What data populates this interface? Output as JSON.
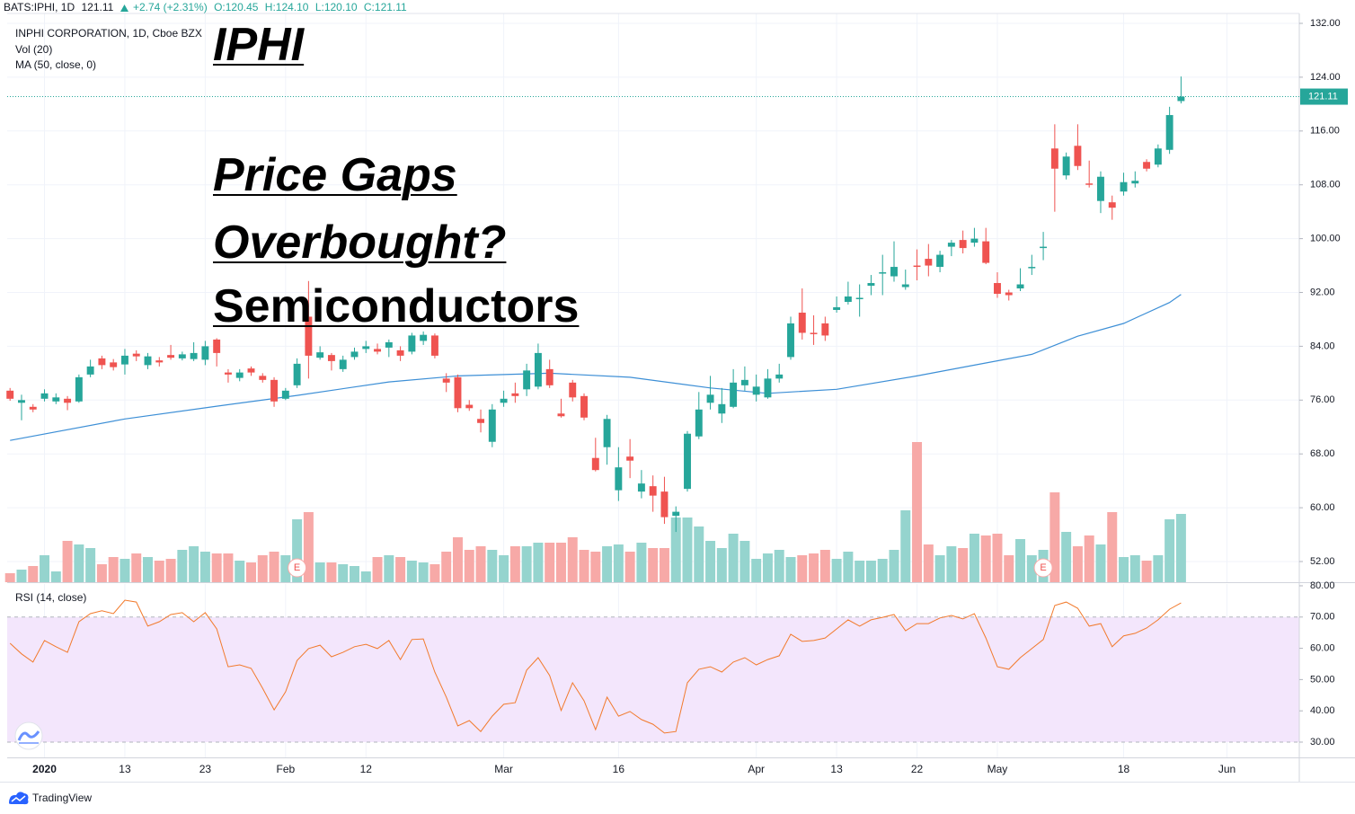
{
  "header": {
    "symbol": "BATS:IPHI, 1D",
    "last": "121.11",
    "change": "+2.74 (+2.31%)",
    "ohlc": [
      "O:120.45",
      "H:124.10",
      "L:120.10",
      "C:121.11"
    ]
  },
  "overlay": [
    "IPHI",
    "Price Gaps",
    "Overbought?",
    "Semiconductors"
  ],
  "footer": {
    "brand": "TradingView"
  },
  "chart_data": [
    {
      "type": "candlestick",
      "title": "INPHI CORPORATION, 1D, Cboe BZX",
      "volume_name": "Vol (20)",
      "up_color": "#26a69a",
      "down_color": "#ef5350",
      "volume_up_color": "#95d4ce",
      "volume_down_color": "#f7a9a7",
      "grid": true,
      "xlim": [
        -0.25,
        112.3
      ],
      "xticks": [
        {
          "value": 3,
          "label": "2020"
        },
        {
          "value": 10,
          "label": "13"
        },
        {
          "value": 17,
          "label": "23"
        },
        {
          "value": 24,
          "label": "Feb"
        },
        {
          "value": 31,
          "label": "12"
        },
        {
          "value": 43,
          "label": "Mar"
        },
        {
          "value": 53,
          "label": "16"
        },
        {
          "value": 65,
          "label": "Apr"
        },
        {
          "value": 72,
          "label": "13"
        },
        {
          "value": 79,
          "label": "22"
        },
        {
          "value": 86,
          "label": "May"
        },
        {
          "value": 97,
          "label": "18"
        },
        {
          "value": 106,
          "label": "Jun"
        }
      ],
      "ylim": [
        48.93,
        133.47
      ],
      "yticks": [
        {
          "value": 52,
          "label": "52.00"
        },
        {
          "value": 60,
          "label": "60.00"
        },
        {
          "value": 68,
          "label": "68.00"
        },
        {
          "value": 76,
          "label": "76.00"
        },
        {
          "value": 84,
          "label": "84.00"
        },
        {
          "value": 92,
          "label": "92.00"
        },
        {
          "value": 100,
          "label": "100.00"
        },
        {
          "value": 108,
          "label": "108.00"
        },
        {
          "value": 116,
          "label": "116.00"
        },
        {
          "value": 124,
          "label": "124.00"
        },
        {
          "value": 132,
          "label": "132.00"
        }
      ],
      "open": [
        77.4,
        75.6,
        75.0,
        76.2,
        75.8,
        76.2,
        75.8,
        79.8,
        82.2,
        81.6,
        81.3,
        82.9,
        81.2,
        81.9,
        82.7,
        82.2,
        82.1,
        82.0,
        85.0,
        80.1,
        79.3,
        80.7,
        79.6,
        79.0,
        76.2,
        78.2,
        88.4,
        82.3,
        82.7,
        80.6,
        82.4,
        83.6,
        83.6,
        83.8,
        83.4,
        83.2,
        84.8,
        85.6,
        79.2,
        79.4,
        75.3,
        73.2,
        69.8,
        75.6,
        77.0,
        77.6,
        78.0,
        80.6,
        74.0,
        78.6,
        76.6,
        67.4,
        69.0,
        62.6,
        67.6,
        62.4,
        63.2,
        62.4,
        58.8,
        62.8,
        70.6,
        75.6,
        74.0,
        75.0,
        78.2,
        76.8,
        76.4,
        79.2,
        82.4,
        89.0,
        86.0,
        87.4,
        89.4,
        90.6,
        91.0,
        93.0,
        94.8,
        94.4,
        92.8,
        96.0,
        97.0,
        95.8,
        98.8,
        99.8,
        99.4,
        99.6,
        93.4,
        92.0,
        92.6,
        95.6,
        98.6,
        113.4,
        109.4,
        113.8,
        108.2,
        105.6,
        105.4,
        107.0,
        108.2,
        111.4,
        111.0,
        113.2,
        120.45
      ],
      "high": [
        77.8,
        76.8,
        75.4,
        77.6,
        77.0,
        76.6,
        79.8,
        82.0,
        82.6,
        82.1,
        83.6,
        83.4,
        83.0,
        82.4,
        84.2,
        83.2,
        84.6,
        84.8,
        85.2,
        80.6,
        80.6,
        81.0,
        80.0,
        79.4,
        77.8,
        82.2,
        93.7,
        84.0,
        83.0,
        82.6,
        83.8,
        84.8,
        84.4,
        85.0,
        84.0,
        86.0,
        86.2,
        85.9,
        80.0,
        79.8,
        76.0,
        74.6,
        75.4,
        77.4,
        78.6,
        81.4,
        84.4,
        82.0,
        76.2,
        79.0,
        77.0,
        70.4,
        73.8,
        69.0,
        70.2,
        65.6,
        64.8,
        64.6,
        60.2,
        71.4,
        77.2,
        79.6,
        77.8,
        80.6,
        81.0,
        79.8,
        80.6,
        81.4,
        88.4,
        92.6,
        88.6,
        88.4,
        91.4,
        93.6,
        93.2,
        94.6,
        97.6,
        99.6,
        95.4,
        98.4,
        99.2,
        98.2,
        99.8,
        101.2,
        101.6,
        101.6,
        95.0,
        92.4,
        95.6,
        97.6,
        101.0,
        117.0,
        112.8,
        117.0,
        111.6,
        110.0,
        106.4,
        109.8,
        110.0,
        111.8,
        114.0,
        119.6,
        124.1
      ],
      "low": [
        75.9,
        73.0,
        74.2,
        75.8,
        75.4,
        74.5,
        75.6,
        79.4,
        80.6,
        80.4,
        79.8,
        81.8,
        80.6,
        81.0,
        82.0,
        81.9,
        81.8,
        81.2,
        81.0,
        78.6,
        78.8,
        79.6,
        78.6,
        75.0,
        76.0,
        77.8,
        79.2,
        82.0,
        80.4,
        80.2,
        82.0,
        83.0,
        82.8,
        82.4,
        81.8,
        82.8,
        84.2,
        82.2,
        77.2,
        74.2,
        74.4,
        71.2,
        69.0,
        75.0,
        75.6,
        76.6,
        77.6,
        77.8,
        73.4,
        75.8,
        73.0,
        65.4,
        66.4,
        61.0,
        64.4,
        61.4,
        59.4,
        57.6,
        56.4,
        62.4,
        70.2,
        74.6,
        72.6,
        74.8,
        77.4,
        75.8,
        76.2,
        78.6,
        82.0,
        85.0,
        84.2,
        84.8,
        89.0,
        90.2,
        88.4,
        91.6,
        91.6,
        93.6,
        92.4,
        93.8,
        94.4,
        95.0,
        97.4,
        97.8,
        98.8,
        96.2,
        91.2,
        90.8,
        92.2,
        94.6,
        96.8,
        104.0,
        108.8,
        110.2,
        107.6,
        103.8,
        102.8,
        106.4,
        107.6,
        110.0,
        110.6,
        112.6,
        120.1
      ],
      "close": [
        76.2,
        76.0,
        74.6,
        77.0,
        76.4,
        75.6,
        79.4,
        81.0,
        81.2,
        80.9,
        82.6,
        82.5,
        82.5,
        81.6,
        82.3,
        82.8,
        83.0,
        84.0,
        83.0,
        79.8,
        80.1,
        80.1,
        79.0,
        75.8,
        77.4,
        81.4,
        82.6,
        83.1,
        81.8,
        82.0,
        83.2,
        84.0,
        83.2,
        84.6,
        82.6,
        85.6,
        85.7,
        82.6,
        78.6,
        74.8,
        74.8,
        72.6,
        74.6,
        76.2,
        76.6,
        80.4,
        83.0,
        78.2,
        73.6,
        76.4,
        73.4,
        65.6,
        73.2,
        66.0,
        67.0,
        63.6,
        61.8,
        58.6,
        59.4,
        71.0,
        74.6,
        76.8,
        75.4,
        78.6,
        79.0,
        78.0,
        79.2,
        79.8,
        87.4,
        86.0,
        85.8,
        85.6,
        89.8,
        91.4,
        91.2,
        93.4,
        95.0,
        95.8,
        93.2,
        95.8,
        96.0,
        97.6,
        99.4,
        98.6,
        100.0,
        96.4,
        91.8,
        91.6,
        93.2,
        95.8,
        98.8,
        110.4,
        112.2,
        110.8,
        108.0,
        109.2,
        104.6,
        108.4,
        108.6,
        110.4,
        113.4,
        118.37,
        121.11
      ],
      "volume": [
        10,
        14,
        18,
        30,
        12,
        46,
        42,
        38,
        20,
        28,
        26,
        32,
        28,
        24,
        26,
        36,
        40,
        34,
        32,
        32,
        24,
        22,
        30,
        34,
        30,
        70,
        78,
        22,
        22,
        20,
        18,
        12,
        28,
        30,
        28,
        24,
        22,
        20,
        34,
        50,
        36,
        40,
        36,
        30,
        40,
        40,
        44,
        44,
        44,
        50,
        36,
        34,
        40,
        42,
        34,
        44,
        38,
        38,
        72,
        72,
        62,
        46,
        38,
        54,
        46,
        26,
        32,
        36,
        28,
        30,
        32,
        36,
        26,
        34,
        24,
        24,
        26,
        36,
        80,
        156,
        42,
        30,
        40,
        38,
        54,
        52,
        54,
        30,
        48,
        30,
        36,
        100,
        56,
        40,
        52,
        42,
        78,
        28,
        30,
        24,
        30,
        70,
        76
      ],
      "ma": {
        "name": "MA (50, close, 0)",
        "color": "#3d8fd6",
        "x": [
          0,
          10,
          18,
          25,
          33,
          39,
          47,
          54,
          61,
          66,
          72,
          79,
          84,
          89,
          93,
          97,
          101,
          102
        ],
        "values": [
          70.0,
          73.2,
          75.1,
          76.7,
          78.7,
          79.6,
          80.0,
          79.4,
          77.8,
          77.0,
          77.6,
          79.6,
          81.2,
          82.8,
          85.5,
          87.4,
          90.5,
          91.7
        ]
      },
      "earnings": [
        {
          "x": 25,
          "label": "E"
        },
        {
          "x": 90,
          "label": "E"
        }
      ]
    },
    {
      "type": "line",
      "title": "RSI (14, close)",
      "color": "#f27a2c",
      "band": [
        30,
        70
      ],
      "band_color": "#f3e6fc",
      "xlim": [
        -0.25,
        112.3
      ],
      "ylim": [
        25.11,
        80.57
      ],
      "yticks": [
        {
          "value": 30,
          "label": "30.00"
        },
        {
          "value": 40,
          "label": "40.00"
        },
        {
          "value": 50,
          "label": "50.00"
        },
        {
          "value": 60,
          "label": "60.00"
        },
        {
          "value": 70,
          "label": "70.00"
        },
        {
          "value": 80,
          "label": "80.00"
        }
      ],
      "values": [
        61.6,
        58.2,
        55.6,
        62.5,
        60.5,
        58.7,
        68.5,
        71.1,
        72.0,
        71.1,
        75.4,
        74.8,
        67.1,
        68.5,
        70.8,
        71.4,
        68.5,
        71.4,
        66.2,
        54.1,
        54.7,
        53.6,
        47.2,
        40.3,
        46.1,
        56.1,
        59.9,
        61.0,
        57.3,
        58.7,
        60.5,
        61.3,
        59.9,
        62.5,
        56.4,
        62.8,
        63.0,
        52.4,
        44.4,
        35.2,
        36.9,
        33.4,
        38.3,
        42.1,
        42.6,
        53.0,
        57.0,
        51.3,
        40.1,
        49.0,
        43.2,
        34.0,
        44.4,
        38.3,
        39.8,
        37.2,
        35.7,
        32.9,
        33.4,
        49.0,
        53.3,
        54.1,
        52.4,
        55.6,
        57.0,
        54.7,
        56.4,
        57.6,
        64.5,
        62.2,
        62.5,
        63.3,
        66.2,
        69.1,
        67.1,
        69.1,
        69.9,
        70.8,
        65.6,
        67.9,
        67.9,
        69.7,
        70.5,
        69.4,
        71.1,
        63.3,
        54.1,
        53.3,
        57.0,
        59.9,
        62.8,
        73.7,
        74.8,
        72.8,
        67.1,
        67.9,
        60.5,
        64.0,
        64.8,
        66.5,
        69.1,
        72.5,
        74.5
      ]
    }
  ]
}
